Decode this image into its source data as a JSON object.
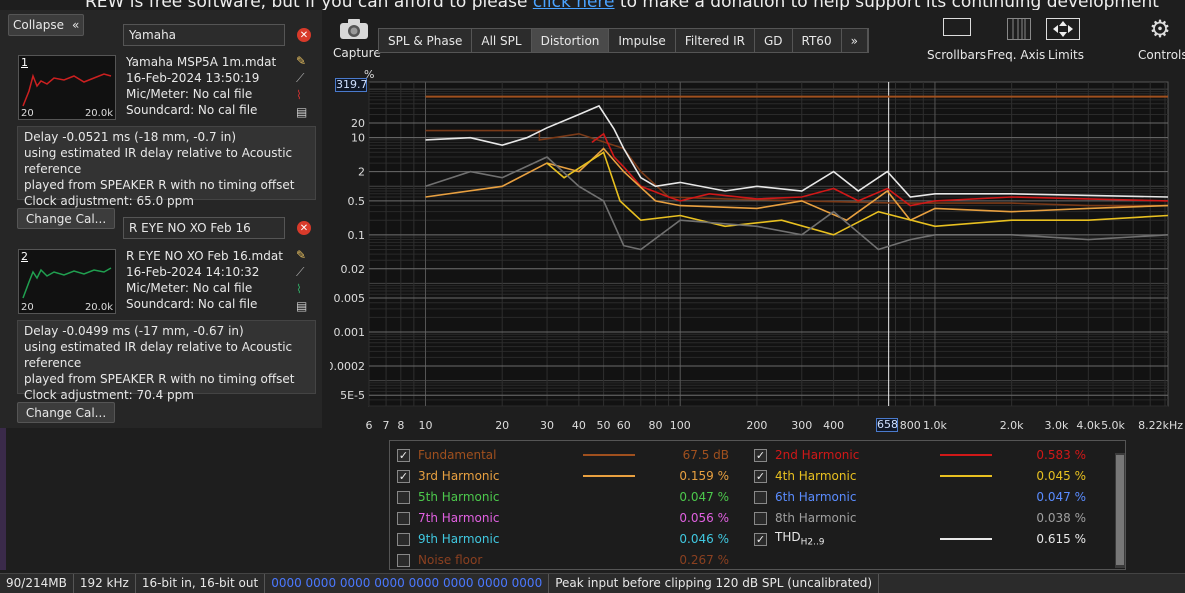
{
  "banner": {
    "pre": "REW is free software, but if you can afford to please ",
    "link": "click here",
    "post": " to make a donation to help support its continuing development"
  },
  "panel": {
    "collapse_label": "Collapse"
  },
  "measurements": [
    {
      "index": "1",
      "name": "Yamaha",
      "file": "Yamaha MSP5A 1m.mdat",
      "date": "16-Feb-2024 13:50:19",
      "mic": "Mic/Meter: No cal file",
      "soundcard": "Soundcard: No cal file",
      "thumb_min": "20",
      "thumb_max": "20.0k",
      "thumb_color": "#cc2020",
      "delay": [
        "Delay -0.0521 ms (-18 mm, -0.7 in)",
        "using estimated IR delay relative to Acoustic reference",
        "played from SPEAKER R with no timing offset",
        "Clock adjustment: 65.0 ppm"
      ],
      "change_cal": "Change Cal..."
    },
    {
      "index": "2",
      "name": "R EYE NO XO Feb 16",
      "file": "R EYE NO XO Feb 16.mdat",
      "date": "16-Feb-2024 14:10:32",
      "mic": "Mic/Meter: No cal file",
      "soundcard": "Soundcard: No cal file",
      "thumb_min": "20",
      "thumb_max": "20.0k",
      "thumb_color": "#20a050",
      "delay": [
        "Delay -0.0499 ms (-17 mm, -0.67 in)",
        "using estimated IR delay relative to Acoustic reference",
        "played from SPEAKER R with no timing offset",
        "Clock adjustment: 70.4 ppm"
      ],
      "change_cal": "Change Cal..."
    }
  ],
  "toolbar": {
    "capture": "Capture",
    "scrollbars": "Scrollbars",
    "freq_axis": "Freq. Axis",
    "limits": "Limits",
    "controls": "Controls",
    "more": "»"
  },
  "tabs": [
    "SPL & Phase",
    "All SPL",
    "Distortion",
    "Impulse",
    "Filtered IR",
    "GD",
    "RT60"
  ],
  "active_tab": "Distortion",
  "chart_data": {
    "type": "line",
    "y_unit": "%",
    "y_scale": "log",
    "x_scale": "log",
    "y_cursor_readout": "319.7",
    "x_cursor_readout": "658",
    "y_ticks": [
      "20",
      "10",
      "2",
      "0.5",
      "0.1",
      "0.02",
      "0.005",
      "0.001",
      "0.0002",
      "5E-5"
    ],
    "x_ticks": [
      "6",
      "7",
      "8",
      "10",
      "20",
      "30",
      "40",
      "50",
      "60",
      "80",
      "100",
      "200",
      "300",
      "400",
      "800",
      "1.0k",
      "2.0k",
      "3.0k",
      "4.0k",
      "5.0k",
      "8.22kHz"
    ],
    "x_range": [
      6,
      8220
    ],
    "y_range": [
      3e-05,
      140
    ],
    "series": [
      {
        "name": "Fundamental",
        "color": "#a0501e",
        "points": [
          [
            10,
            70
          ],
          [
            8220,
            70
          ]
        ]
      },
      {
        "name": "Noise floor",
        "color": "#7a3a18",
        "points": [
          [
            10,
            14
          ],
          [
            28,
            14
          ],
          [
            28,
            9
          ],
          [
            40,
            12
          ],
          [
            60,
            6
          ],
          [
            70,
            2
          ],
          [
            90,
            0.6
          ],
          [
            150,
            0.55
          ],
          [
            300,
            0.5
          ],
          [
            700,
            0.45
          ],
          [
            1000,
            0.45
          ],
          [
            2000,
            0.45
          ],
          [
            4000,
            0.4
          ],
          [
            8220,
            0.4
          ]
        ]
      },
      {
        "name": "2nd Harmonic",
        "color": "#d01818",
        "points": [
          [
            45,
            8
          ],
          [
            50,
            12
          ],
          [
            55,
            4
          ],
          [
            60,
            2.5
          ],
          [
            70,
            1
          ],
          [
            90,
            0.6
          ],
          [
            100,
            0.5
          ],
          [
            130,
            0.7
          ],
          [
            200,
            0.55
          ],
          [
            300,
            0.6
          ],
          [
            400,
            0.9
          ],
          [
            500,
            0.5
          ],
          [
            650,
            0.9
          ],
          [
            800,
            0.4
          ],
          [
            1000,
            0.5
          ],
          [
            2000,
            0.6
          ],
          [
            4000,
            0.55
          ],
          [
            8220,
            0.5
          ]
        ]
      },
      {
        "name": "3rd Harmonic",
        "color": "#e8a040",
        "points": [
          [
            10,
            0.6
          ],
          [
            20,
            1
          ],
          [
            30,
            3
          ],
          [
            40,
            2
          ],
          [
            50,
            6
          ],
          [
            60,
            2
          ],
          [
            80,
            0.5
          ],
          [
            100,
            0.4
          ],
          [
            200,
            0.35
          ],
          [
            300,
            0.5
          ],
          [
            450,
            0.2
          ],
          [
            650,
            0.8
          ],
          [
            800,
            0.2
          ],
          [
            1000,
            0.35
          ],
          [
            2000,
            0.3
          ],
          [
            4000,
            0.35
          ],
          [
            8220,
            0.4
          ]
        ]
      },
      {
        "name": "4th Harmonic",
        "color": "#e8c020",
        "points": [
          [
            30,
            3
          ],
          [
            35,
            1.5
          ],
          [
            50,
            5
          ],
          [
            58,
            0.5
          ],
          [
            70,
            0.2
          ],
          [
            100,
            0.25
          ],
          [
            150,
            0.15
          ],
          [
            250,
            0.2
          ],
          [
            400,
            0.1
          ],
          [
            600,
            0.3
          ],
          [
            1000,
            0.15
          ],
          [
            2000,
            0.2
          ],
          [
            4000,
            0.2
          ],
          [
            8220,
            0.25
          ]
        ]
      },
      {
        "name": "8th Harmonic",
        "color": "#707070",
        "points": [
          [
            10,
            1
          ],
          [
            15,
            2
          ],
          [
            20,
            1.5
          ],
          [
            30,
            4
          ],
          [
            40,
            1
          ],
          [
            50,
            0.5
          ],
          [
            60,
            0.06
          ],
          [
            70,
            0.05
          ],
          [
            100,
            0.2
          ],
          [
            200,
            0.15
          ],
          [
            300,
            0.1
          ],
          [
            400,
            0.3
          ],
          [
            600,
            0.05
          ],
          [
            800,
            0.08
          ],
          [
            1000,
            0.1
          ],
          [
            2000,
            0.1
          ],
          [
            4000,
            0.08
          ],
          [
            8220,
            0.1
          ]
        ]
      },
      {
        "name": "THD",
        "color": "#e8e8e8",
        "points": [
          [
            10,
            9
          ],
          [
            15,
            10
          ],
          [
            20,
            7
          ],
          [
            25,
            10
          ],
          [
            30,
            16
          ],
          [
            40,
            30
          ],
          [
            48,
            45
          ],
          [
            55,
            15
          ],
          [
            60,
            6
          ],
          [
            70,
            1.5
          ],
          [
            80,
            1
          ],
          [
            100,
            1.2
          ],
          [
            150,
            0.8
          ],
          [
            200,
            1
          ],
          [
            300,
            0.8
          ],
          [
            400,
            2
          ],
          [
            500,
            0.8
          ],
          [
            650,
            2
          ],
          [
            800,
            0.6
          ],
          [
            1000,
            0.7
          ],
          [
            2000,
            0.7
          ],
          [
            4000,
            0.65
          ],
          [
            8220,
            0.6
          ]
        ]
      }
    ]
  },
  "legend": [
    {
      "checked": true,
      "name": "Fundamental",
      "color": "#a0501e",
      "value": "67.5 dB",
      "line": true
    },
    {
      "checked": true,
      "name": "2nd Harmonic",
      "color": "#d01818",
      "value": "0.583 %",
      "line": true
    },
    {
      "checked": true,
      "name": "3rd Harmonic",
      "color": "#e8a040",
      "value": "0.159 %",
      "line": true
    },
    {
      "checked": true,
      "name": "4th Harmonic",
      "color": "#e8c020",
      "value": "0.045 %",
      "line": true
    },
    {
      "checked": false,
      "name": "5th Harmonic",
      "color": "#4cc84c",
      "value": "0.047 %",
      "line": false
    },
    {
      "checked": false,
      "name": "6th Harmonic",
      "color": "#5a8cff",
      "value": "0.047 %",
      "line": false
    },
    {
      "checked": false,
      "name": "7th Harmonic",
      "color": "#e060e0",
      "value": "0.056 %",
      "line": false
    },
    {
      "checked": false,
      "name": "8th Harmonic",
      "color": "#a0a0a0",
      "value": "0.038 %",
      "line": false
    },
    {
      "checked": false,
      "name": "9th Harmonic",
      "color": "#40c8e0",
      "value": "0.046 %",
      "line": false
    },
    {
      "checked": true,
      "name": "THD",
      "sub": "H2..9",
      "color": "#e8e8e8",
      "value": "0.615 %",
      "line": true
    },
    {
      "checked": false,
      "name": "Noise floor",
      "color": "#8a4020",
      "value": "0.267 %",
      "line": false
    }
  ],
  "status": [
    "90/214MB",
    "192 kHz",
    "16-bit in, 16-bit out",
    "0000 0000  0000 0000  0000 0000  0000 0000",
    "Peak input before clipping 120 dB SPL (uncalibrated)"
  ]
}
